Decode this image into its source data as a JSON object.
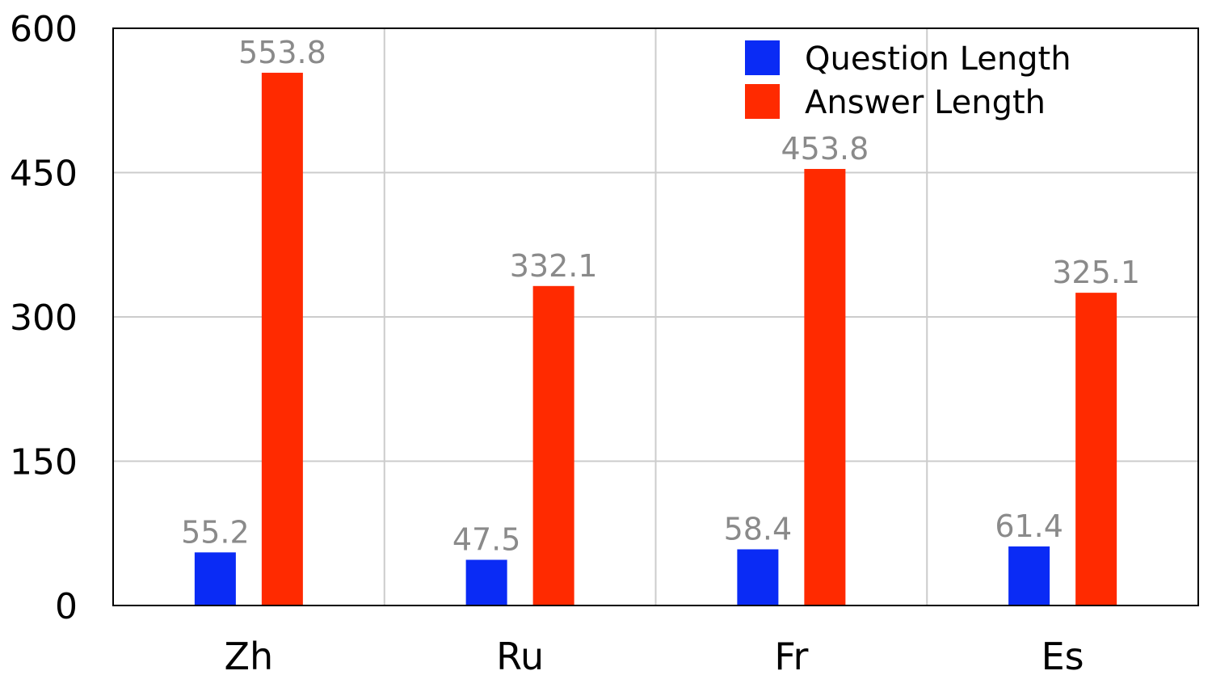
{
  "chart_data": {
    "type": "bar",
    "categories": [
      "Zh",
      "Ru",
      "Fr",
      "Es"
    ],
    "series": [
      {
        "name": "Question Length",
        "values": [
          55.2,
          47.5,
          58.4,
          61.4
        ],
        "color": "#0a2bf5"
      },
      {
        "name": "Answer Length",
        "values": [
          553.8,
          332.1,
          453.8,
          325.1
        ],
        "color": "#ff2a00"
      }
    ],
    "value_labels": {
      "Question Length": [
        "55.2",
        "47.5",
        "58.4",
        "61.4"
      ],
      "Answer Length": [
        "553.8",
        "332.1",
        "453.8",
        "325.1"
      ]
    },
    "ylim": [
      0,
      600
    ],
    "yticks": [
      0,
      150,
      300,
      450,
      600
    ],
    "ytick_labels": [
      "0",
      "150",
      "300",
      "450",
      "600"
    ],
    "title": "",
    "xlabel": "",
    "ylabel": "",
    "legend_position": "top-right",
    "grid": true
  }
}
